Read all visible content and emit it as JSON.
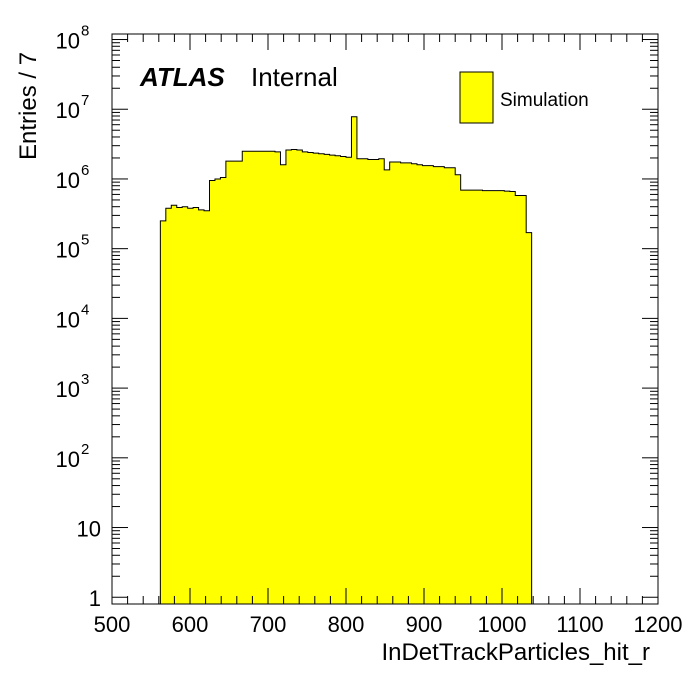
{
  "chart_data": {
    "type": "histogram",
    "x_label": "InDetTrackParticles_hit_r",
    "y_label": "Entries / 7",
    "x_range": [
      500,
      1200
    ],
    "y_range": [
      0.8,
      120000000
    ],
    "y_scale": "log",
    "x_ticks": [
      "500",
      "600",
      "700",
      "800",
      "900",
      "1000",
      "1100",
      "1200"
    ],
    "y_ticks": [
      {
        "value": 1,
        "base": "1",
        "exp": ""
      },
      {
        "value": 10,
        "base": "10",
        "exp": ""
      },
      {
        "value": 100,
        "base": "10",
        "exp": "2"
      },
      {
        "value": 1000,
        "base": "10",
        "exp": "3"
      },
      {
        "value": 10000,
        "base": "10",
        "exp": "4"
      },
      {
        "value": 100000,
        "base": "10",
        "exp": "5"
      },
      {
        "value": 1000000,
        "base": "10",
        "exp": "6"
      },
      {
        "value": 10000000,
        "base": "10",
        "exp": "7"
      },
      {
        "value": 100000000,
        "base": "10",
        "exp": "8"
      }
    ],
    "bin_width": 7,
    "bin_start": 562,
    "values": [
      250000,
      380000,
      420000,
      390000,
      400000,
      380000,
      390000,
      360000,
      350000,
      950000,
      1000000,
      1050000,
      1800000,
      1800000,
      1800000,
      2500000,
      2500000,
      2500000,
      2500000,
      2500000,
      2500000,
      2450000,
      1600000,
      2600000,
      2650000,
      2600000,
      2450000,
      2400000,
      2350000,
      2300000,
      2250000,
      2200000,
      2150000,
      2100000,
      2050000,
      7800000,
      1950000,
      1950000,
      1900000,
      1900000,
      1950000,
      1350000,
      1750000,
      1750000,
      1700000,
      1700000,
      1650000,
      1600000,
      1550000,
      1550000,
      1500000,
      1500000,
      1450000,
      1450000,
      1150000,
      690000,
      690000,
      690000,
      690000,
      680000,
      680000,
      680000,
      680000,
      670000,
      660000,
      580000,
      580000,
      170000
    ],
    "fill_color": "#ffff00",
    "line_color": "#000000",
    "legend": {
      "label": "Simulation",
      "position": "top-right"
    }
  },
  "atlas_label": {
    "bold": "ATLAS",
    "text": "Internal"
  }
}
